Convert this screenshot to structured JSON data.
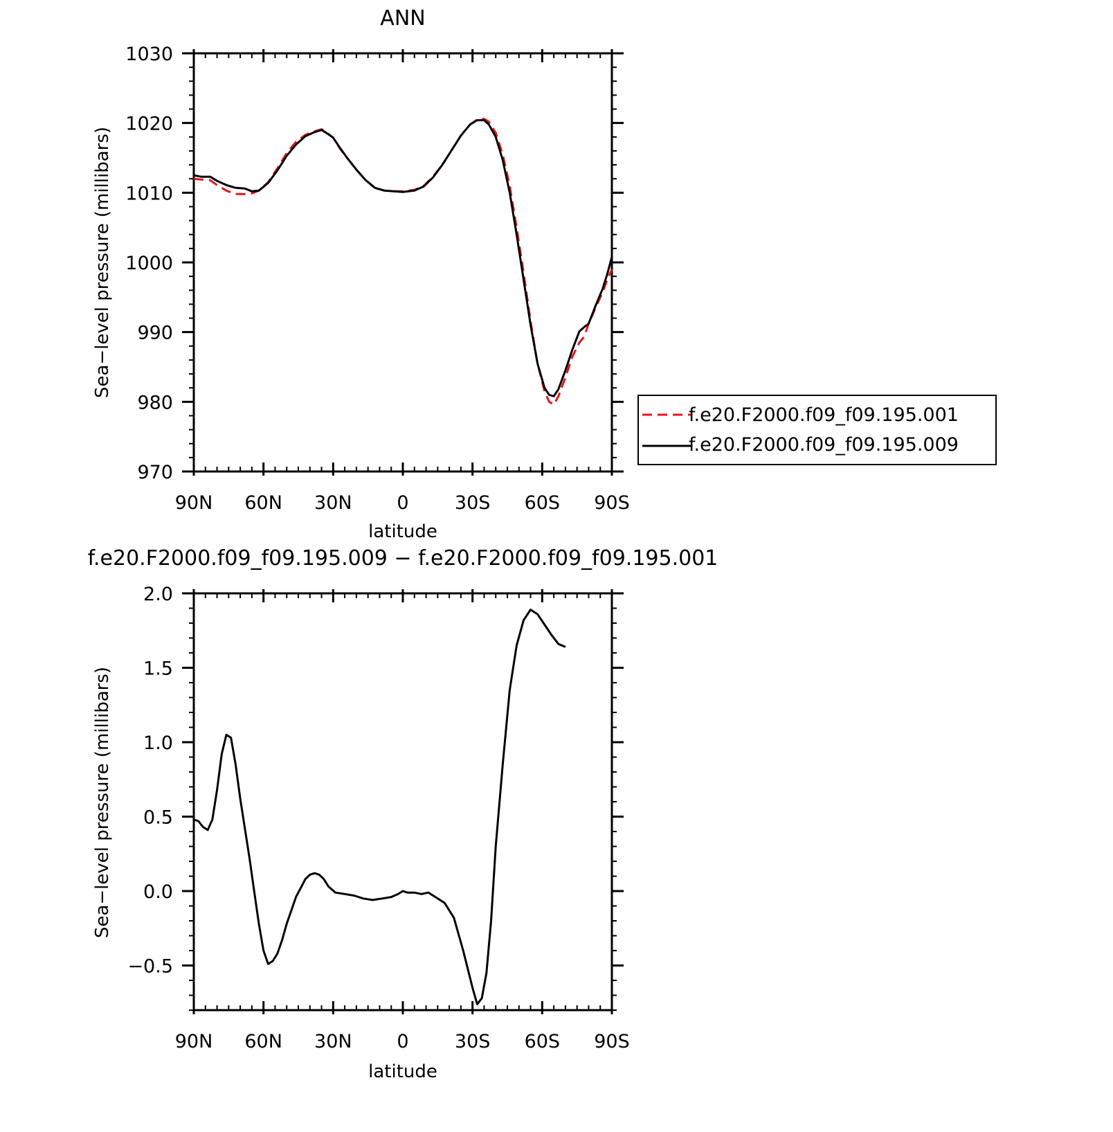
{
  "chart_data": [
    {
      "type": "line",
      "title": "ANN",
      "xlabel": "latitude",
      "ylabel": "Sea−level pressure (millibars)",
      "xlim": [
        90,
        -90
      ],
      "ylim": [
        970,
        1030
      ],
      "x_ticks": [
        {
          "value": 90,
          "label": "90N"
        },
        {
          "value": 60,
          "label": "60N"
        },
        {
          "value": 30,
          "label": "30N"
        },
        {
          "value": 0,
          "label": "0"
        },
        {
          "value": -30,
          "label": "30S"
        },
        {
          "value": -60,
          "label": "60S"
        },
        {
          "value": -90,
          "label": "90S"
        }
      ],
      "y_ticks": [
        {
          "value": 1030,
          "label": "1030"
        },
        {
          "value": 1020,
          "label": "1020"
        },
        {
          "value": 1010,
          "label": "1010"
        },
        {
          "value": 1000,
          "label": "1000"
        },
        {
          "value": 990,
          "label": "990"
        },
        {
          "value": 980,
          "label": "980"
        },
        {
          "value": 970,
          "label": "970"
        }
      ],
      "legend_position": "right",
      "series": [
        {
          "name": "f.e20.F2000.f09_f09.195.001",
          "color": "#e8141b",
          "dash": "dashed",
          "points": [
            [
              90,
              1012.0
            ],
            [
              87,
              1011.9
            ],
            [
              83,
              1011.8
            ],
            [
              80,
              1011.1
            ],
            [
              76,
              1010.3
            ],
            [
              72,
              1009.8
            ],
            [
              68,
              1009.8
            ],
            [
              65,
              1009.9
            ],
            [
              62,
              1010.3
            ],
            [
              58,
              1011.5
            ],
            [
              54,
              1013.5
            ],
            [
              50,
              1015.7
            ],
            [
              46,
              1017.3
            ],
            [
              42,
              1018.3
            ],
            [
              38,
              1018.8
            ],
            [
              35,
              1019.1
            ],
            [
              33,
              1018.7
            ],
            [
              30,
              1017.9
            ],
            [
              27,
              1016.3
            ],
            [
              24,
              1015.0
            ],
            [
              20,
              1013.3
            ],
            [
              16,
              1011.8
            ],
            [
              12,
              1010.7
            ],
            [
              8,
              1010.3
            ],
            [
              4,
              1010.2
            ],
            [
              0,
              1010.2
            ],
            [
              -5,
              1010.4
            ],
            [
              -9,
              1011.0
            ],
            [
              -13,
              1012.3
            ],
            [
              -17,
              1014.0
            ],
            [
              -21,
              1016.1
            ],
            [
              -25,
              1018.2
            ],
            [
              -29,
              1019.8
            ],
            [
              -32,
              1020.5
            ],
            [
              -35,
              1020.6
            ],
            [
              -37,
              1020.2
            ],
            [
              -40,
              1018.6
            ],
            [
              -43,
              1015.5
            ],
            [
              -46,
              1011.0
            ],
            [
              -49,
              1005.0
            ],
            [
              -52,
              998.5
            ],
            [
              -55,
              991.5
            ],
            [
              -58,
              985.5
            ],
            [
              -61,
              981.5
            ],
            [
              -63,
              980.0
            ],
            [
              -65,
              979.6
            ],
            [
              -67,
              980.8
            ],
            [
              -70,
              983.5
            ],
            [
              -73,
              986.5
            ],
            [
              -76,
              988.5
            ],
            [
              -78,
              989.3
            ],
            [
              -80,
              991.2
            ],
            [
              -83,
              993.5
            ],
            [
              -86,
              995.7
            ],
            [
              -88,
              997.5
            ],
            [
              -90,
              999.0
            ]
          ]
        },
        {
          "name": "f.e20.F2000.f09_f09.195.009",
          "color": "#000000",
          "dash": "solid",
          "points": [
            [
              90,
              1012.5
            ],
            [
              87,
              1012.3
            ],
            [
              83,
              1012.3
            ],
            [
              80,
              1011.7
            ],
            [
              76,
              1011.1
            ],
            [
              72,
              1010.7
            ],
            [
              68,
              1010.6
            ],
            [
              65,
              1010.2
            ],
            [
              62,
              1010.3
            ],
            [
              58,
              1011.4
            ],
            [
              54,
              1013.2
            ],
            [
              50,
              1015.3
            ],
            [
              46,
              1016.9
            ],
            [
              42,
              1018.1
            ],
            [
              38,
              1018.7
            ],
            [
              35,
              1019.0
            ],
            [
              33,
              1018.6
            ],
            [
              30,
              1017.9
            ],
            [
              27,
              1016.4
            ],
            [
              24,
              1015.0
            ],
            [
              20,
              1013.3
            ],
            [
              16,
              1011.8
            ],
            [
              12,
              1010.7
            ],
            [
              8,
              1010.3
            ],
            [
              4,
              1010.2
            ],
            [
              0,
              1010.1
            ],
            [
              -5,
              1010.3
            ],
            [
              -9,
              1010.9
            ],
            [
              -13,
              1012.2
            ],
            [
              -17,
              1014.0
            ],
            [
              -21,
              1016.1
            ],
            [
              -25,
              1018.2
            ],
            [
              -29,
              1019.8
            ],
            [
              -32,
              1020.4
            ],
            [
              -35,
              1020.4
            ],
            [
              -37,
              1019.8
            ],
            [
              -40,
              1018.0
            ],
            [
              -43,
              1014.7
            ],
            [
              -46,
              1010.0
            ],
            [
              -49,
              1004.0
            ],
            [
              -52,
              997.5
            ],
            [
              -55,
              991.0
            ],
            [
              -58,
              985.5
            ],
            [
              -61,
              982.0
            ],
            [
              -63,
              981.0
            ],
            [
              -65,
              980.8
            ],
            [
              -67,
              981.8
            ],
            [
              -70,
              984.5
            ],
            [
              -73,
              987.5
            ],
            [
              -76,
              990.1
            ],
            [
              -78,
              990.7
            ],
            [
              -80,
              991.2
            ],
            [
              -83,
              993.8
            ],
            [
              -86,
              996.2
            ],
            [
              -88,
              998.3
            ],
            [
              -90,
              1000.8
            ]
          ]
        }
      ]
    },
    {
      "type": "line",
      "title": "f.e20.F2000.f09_f09.195.009 − f.e20.F2000.f09_f09.195.001",
      "xlabel": "latitude",
      "ylabel": "Sea−level pressure (millibars)",
      "xlim": [
        90,
        -90
      ],
      "ylim": [
        -0.8,
        2.0
      ],
      "x_ticks": [
        {
          "value": 90,
          "label": "90N"
        },
        {
          "value": 60,
          "label": "60N"
        },
        {
          "value": 30,
          "label": "30N"
        },
        {
          "value": 0,
          "label": "0"
        },
        {
          "value": -30,
          "label": "30S"
        },
        {
          "value": -60,
          "label": "60S"
        },
        {
          "value": -90,
          "label": "90S"
        }
      ],
      "y_ticks": [
        {
          "value": 2.0,
          "label": "2.0"
        },
        {
          "value": 1.5,
          "label": "1.5"
        },
        {
          "value": 1.0,
          "label": "1.0"
        },
        {
          "value": 0.5,
          "label": "0.5"
        },
        {
          "value": 0.0,
          "label": "0.0"
        },
        {
          "value": -0.5,
          "label": "−0.5"
        }
      ],
      "series": [
        {
          "color": "#000000",
          "dash": "solid",
          "points": [
            [
              90,
              0.48
            ],
            [
              88,
              0.47
            ],
            [
              86,
              0.43
            ],
            [
              84,
              0.41
            ],
            [
              82,
              0.48
            ],
            [
              80,
              0.68
            ],
            [
              78,
              0.92
            ],
            [
              76,
              1.05
            ],
            [
              74,
              1.03
            ],
            [
              72,
              0.85
            ],
            [
              70,
              0.62
            ],
            [
              68,
              0.42
            ],
            [
              66,
              0.22
            ],
            [
              64,
              0.0
            ],
            [
              62,
              -0.22
            ],
            [
              60,
              -0.4
            ],
            [
              58,
              -0.49
            ],
            [
              56,
              -0.47
            ],
            [
              54,
              -0.42
            ],
            [
              52,
              -0.33
            ],
            [
              50,
              -0.22
            ],
            [
              48,
              -0.13
            ],
            [
              46,
              -0.04
            ],
            [
              44,
              0.02
            ],
            [
              42,
              0.08
            ],
            [
              40,
              0.11
            ],
            [
              38,
              0.12
            ],
            [
              36,
              0.11
            ],
            [
              34,
              0.08
            ],
            [
              32,
              0.03
            ],
            [
              29,
              -0.01
            ],
            [
              25,
              -0.02
            ],
            [
              21,
              -0.03
            ],
            [
              17,
              -0.05
            ],
            [
              13,
              -0.06
            ],
            [
              9,
              -0.05
            ],
            [
              5,
              -0.04
            ],
            [
              2,
              -0.02
            ],
            [
              0,
              0.0
            ],
            [
              -2,
              -0.01
            ],
            [
              -5,
              -0.01
            ],
            [
              -8,
              -0.02
            ],
            [
              -11,
              -0.01
            ],
            [
              -14,
              -0.04
            ],
            [
              -18,
              -0.08
            ],
            [
              -22,
              -0.18
            ],
            [
              -26,
              -0.4
            ],
            [
              -30,
              -0.65
            ],
            [
              -32,
              -0.76
            ],
            [
              -34,
              -0.72
            ],
            [
              -36,
              -0.55
            ],
            [
              -38,
              -0.2
            ],
            [
              -40,
              0.3
            ],
            [
              -43,
              0.85
            ],
            [
              -46,
              1.35
            ],
            [
              -49,
              1.65
            ],
            [
              -52,
              1.82
            ],
            [
              -55,
              1.89
            ],
            [
              -58,
              1.86
            ],
            [
              -61,
              1.79
            ],
            [
              -64,
              1.72
            ],
            [
              -67,
              1.66
            ],
            [
              -70,
              1.64
            ]
          ]
        }
      ]
    }
  ]
}
